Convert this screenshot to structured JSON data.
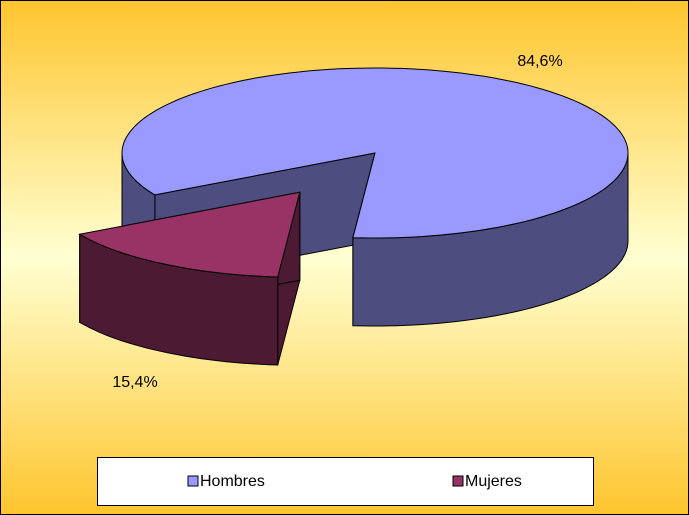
{
  "chart_data": {
    "type": "pie",
    "categories": [
      "Hombres",
      "Mujeres"
    ],
    "values": [
      84.6,
      15.4
    ],
    "value_labels": [
      "84,6%",
      "15,4%"
    ],
    "colors": [
      "#9999ff",
      "#993366"
    ],
    "side_colors": [
      "#4d4d80",
      "#4d1a33"
    ],
    "legend": "bottom"
  }
}
